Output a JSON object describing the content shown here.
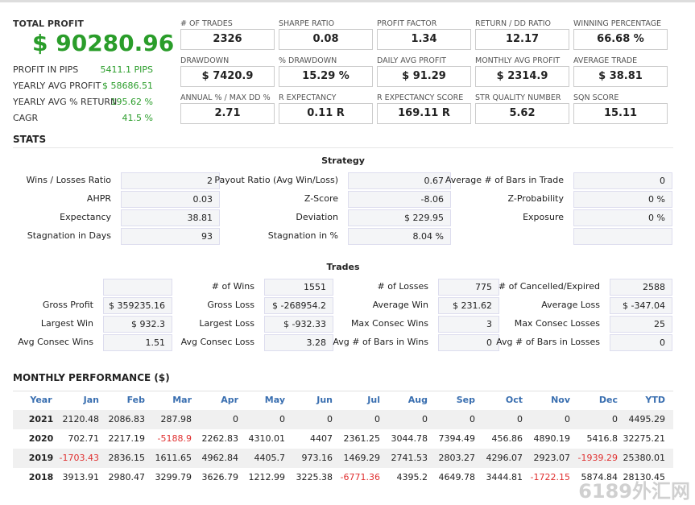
{
  "summary": {
    "title": "TOTAL PROFIT",
    "value": "$ 90280.96",
    "items": [
      {
        "label": "PROFIT IN PIPS",
        "value": "5411.1 PIPS"
      },
      {
        "label": "YEARLY AVG PROFIT",
        "value": "$ 58686.51"
      },
      {
        "label": "YEARLY AVG % RETURN",
        "value": "195.62 %"
      },
      {
        "label": "CAGR",
        "value": "41.5 %"
      }
    ]
  },
  "metrics": [
    [
      {
        "label": "# OF TRADES",
        "value": "2326"
      },
      {
        "label": "SHARPE RATIO",
        "value": "0.08"
      },
      {
        "label": "PROFIT FACTOR",
        "value": "1.34"
      },
      {
        "label": "RETURN / DD RATIO",
        "value": "12.17"
      },
      {
        "label": "WINNING PERCENTAGE",
        "value": "66.68 %"
      }
    ],
    [
      {
        "label": "DRAWDOWN",
        "value": "$ 7420.9"
      },
      {
        "label": "% DRAWDOWN",
        "value": "15.29 %"
      },
      {
        "label": "DAILY AVG PROFIT",
        "value": "$ 91.29"
      },
      {
        "label": "MONTHLY AVG PROFIT",
        "value": "$ 2314.9"
      },
      {
        "label": "AVERAGE TRADE",
        "value": "$ 38.81"
      }
    ],
    [
      {
        "label": "ANNUAL % / MAX DD %",
        "value": "2.71"
      },
      {
        "label": "R EXPECTANCY",
        "value": "0.11 R"
      },
      {
        "label": "R EXPECTANCY SCORE",
        "value": "169.11 R"
      },
      {
        "label": "STR QUALITY NUMBER",
        "value": "5.62"
      },
      {
        "label": "SQN SCORE",
        "value": "15.11"
      }
    ]
  ],
  "stats": {
    "title": "STATS",
    "strategy": {
      "title": "Strategy",
      "rows": [
        [
          {
            "label": "Wins / Losses Ratio",
            "value": "2"
          },
          {
            "label": "Payout Ratio (Avg Win/Loss)",
            "value": "0.67"
          },
          {
            "label": "Average # of Bars in Trade",
            "value": "0"
          }
        ],
        [
          {
            "label": "AHPR",
            "value": "0.03"
          },
          {
            "label": "Z-Score",
            "value": "-8.06"
          },
          {
            "label": "Z-Probability",
            "value": "0 %"
          }
        ],
        [
          {
            "label": "Expectancy",
            "value": "38.81"
          },
          {
            "label": "Deviation",
            "value": "$ 229.95"
          },
          {
            "label": "Exposure",
            "value": "0 %"
          }
        ],
        [
          {
            "label": "Stagnation in Days",
            "value": "93"
          },
          {
            "label": "Stagnation in %",
            "value": "8.04 %"
          },
          null
        ]
      ]
    },
    "trades": {
      "title": "Trades",
      "rows": [
        [
          null,
          {
            "label": "# of Wins",
            "value": "1551"
          },
          {
            "label": "# of Losses",
            "value": "775"
          },
          {
            "label": "# of Cancelled/Expired",
            "value": "2588"
          }
        ],
        [
          {
            "label": "Gross Profit",
            "value": "$ 359235.16"
          },
          {
            "label": "Gross Loss",
            "value": "$ -268954.2"
          },
          {
            "label": "Average Win",
            "value": "$ 231.62"
          },
          {
            "label": "Average Loss",
            "value": "$ -347.04"
          }
        ],
        [
          {
            "label": "Largest Win",
            "value": "$ 932.3"
          },
          {
            "label": "Largest Loss",
            "value": "$ -932.33"
          },
          {
            "label": "Max Consec Wins",
            "value": "3"
          },
          {
            "label": "Max Consec Losses",
            "value": "25"
          }
        ],
        [
          {
            "label": "Avg Consec Wins",
            "value": "1.51"
          },
          {
            "label": "Avg Consec Loss",
            "value": "3.28"
          },
          {
            "label": "Avg # of Bars in Wins",
            "value": "0"
          },
          {
            "label": "Avg # of Bars in Losses",
            "value": "0"
          }
        ]
      ]
    }
  },
  "monthly": {
    "title": "MONTHLY PERFORMANCE ($)",
    "columns": [
      "Year",
      "Jan",
      "Feb",
      "Mar",
      "Apr",
      "May",
      "Jun",
      "Jul",
      "Aug",
      "Sep",
      "Oct",
      "Nov",
      "Dec",
      "YTD"
    ],
    "rows": [
      [
        "2021",
        "2120.48",
        "2086.83",
        "287.98",
        "0",
        "0",
        "0",
        "0",
        "0",
        "0",
        "0",
        "0",
        "0",
        "4495.29"
      ],
      [
        "2020",
        "702.71",
        "2217.19",
        "-5188.9",
        "2262.83",
        "4310.01",
        "4407",
        "2361.25",
        "3044.78",
        "7394.49",
        "456.86",
        "4890.19",
        "5416.8",
        "32275.21"
      ],
      [
        "2019",
        "-1703.43",
        "2836.15",
        "1611.65",
        "4962.84",
        "4405.7",
        "973.16",
        "1469.29",
        "2741.53",
        "2803.27",
        "4296.07",
        "2923.07",
        "-1939.29",
        "25380.01"
      ],
      [
        "2018",
        "3913.91",
        "2980.47",
        "3299.79",
        "3626.79",
        "1212.99",
        "3225.38",
        "-6771.36",
        "4395.2",
        "4649.78",
        "3444.81",
        "-1722.15",
        "5874.84",
        "28130.45"
      ]
    ]
  },
  "watermark": "6189外汇网"
}
